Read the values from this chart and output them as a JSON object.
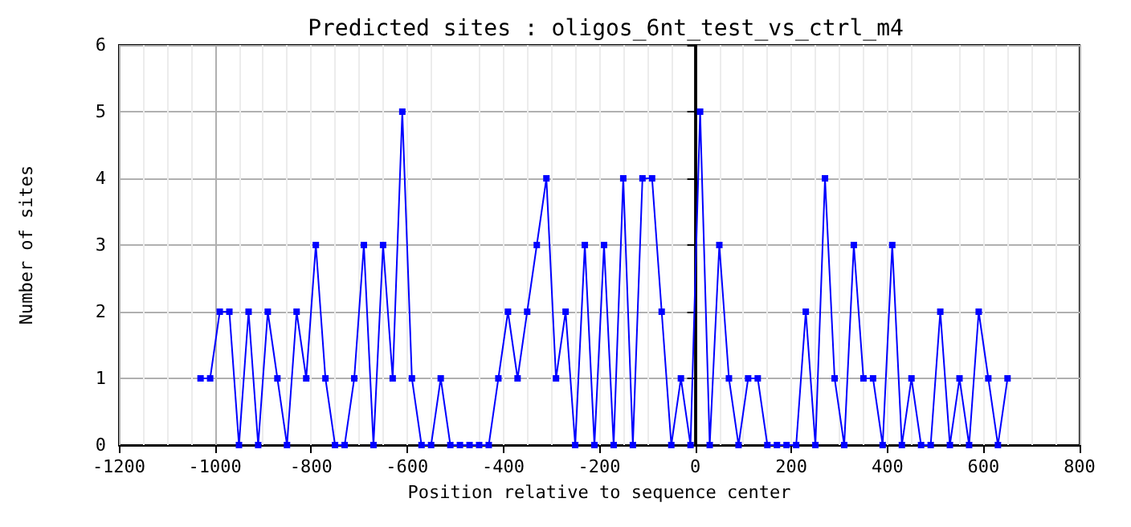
{
  "chart_data": {
    "type": "line",
    "title": "Predicted sites : oligos_6nt_test_vs_ctrl_m4",
    "xlabel": "Position relative to sequence center",
    "ylabel": "Number of sites",
    "x": [
      -1030,
      -1010,
      -990,
      -970,
      -950,
      -930,
      -910,
      -890,
      -870,
      -850,
      -830,
      -810,
      -790,
      -770,
      -750,
      -730,
      -710,
      -690,
      -670,
      -650,
      -630,
      -610,
      -590,
      -570,
      -550,
      -530,
      -510,
      -490,
      -470,
      -450,
      -430,
      -410,
      -390,
      -370,
      -350,
      -330,
      -310,
      -290,
      -270,
      -250,
      -230,
      -210,
      -190,
      -170,
      -150,
      -130,
      -110,
      -90,
      -70,
      -50,
      -30,
      -10,
      10,
      30,
      50,
      70,
      90,
      110,
      130,
      150,
      170,
      190,
      210,
      230,
      250,
      270,
      290,
      310,
      330,
      350,
      370,
      390,
      410,
      430,
      450,
      470,
      490,
      510,
      530,
      550,
      570,
      590,
      610,
      630,
      650
    ],
    "series": [
      {
        "color": "#0000ff",
        "values": [
          1,
          1,
          2,
          2,
          0,
          2,
          0,
          2,
          1,
          0,
          2,
          1,
          3,
          1,
          0,
          0,
          1,
          3,
          0,
          3,
          1,
          5,
          1,
          0,
          0,
          1,
          0,
          0,
          0,
          0,
          0,
          1,
          2,
          1,
          2,
          3,
          4,
          1,
          2,
          0,
          3,
          0,
          3,
          0,
          4,
          0,
          4,
          4,
          2,
          0,
          1,
          0,
          5,
          0,
          3,
          1,
          0,
          1,
          1,
          0,
          0,
          0,
          0,
          2,
          0,
          4,
          1,
          0,
          3,
          1,
          1,
          0,
          3,
          0,
          1,
          0,
          0,
          2,
          0,
          1,
          0,
          2,
          1,
          0,
          1
        ]
      }
    ],
    "xlim": [
      -1200,
      800
    ],
    "xticks": [
      -1200,
      -1000,
      -800,
      -600,
      -400,
      -200,
      0,
      200,
      400,
      600,
      800
    ],
    "ylim": [
      0,
      6
    ],
    "yticks": [
      0,
      1,
      2,
      3,
      4,
      5,
      6
    ],
    "ref_lines": [
      {
        "axis": "x",
        "value": 0,
        "color": "#000000"
      }
    ],
    "grid": true,
    "marker": "square",
    "line_style": "solid"
  }
}
